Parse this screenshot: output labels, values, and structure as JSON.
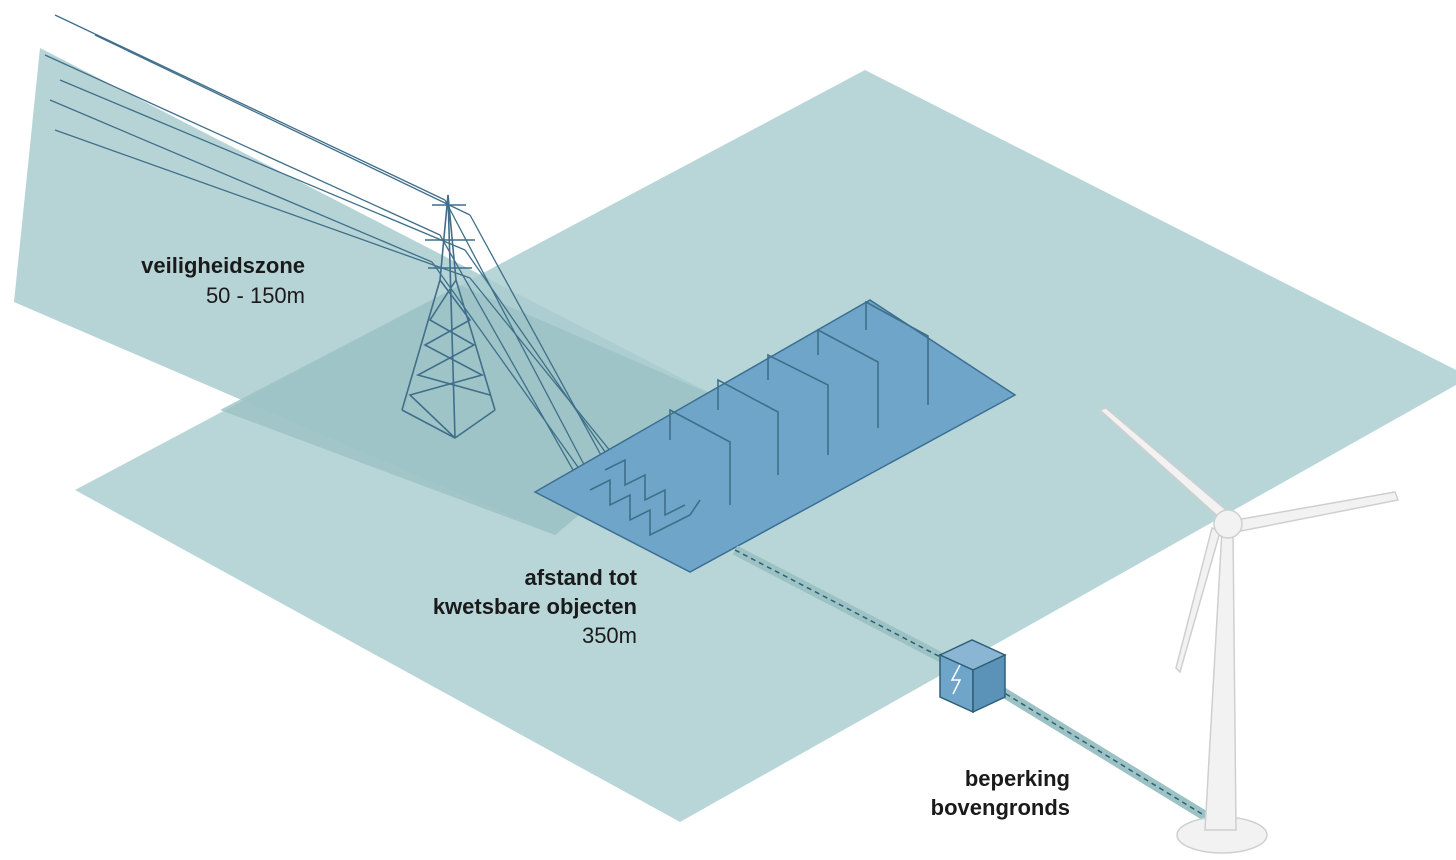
{
  "labels": [
    {
      "title": [
        "veiligheidszone"
      ],
      "detail": "50 - 150m"
    },
    {
      "title": [
        "afstand tot",
        "kwetsbare objecten"
      ],
      "detail": "350m"
    },
    {
      "title": [
        "beperking",
        "bovengronds"
      ]
    }
  ]
}
